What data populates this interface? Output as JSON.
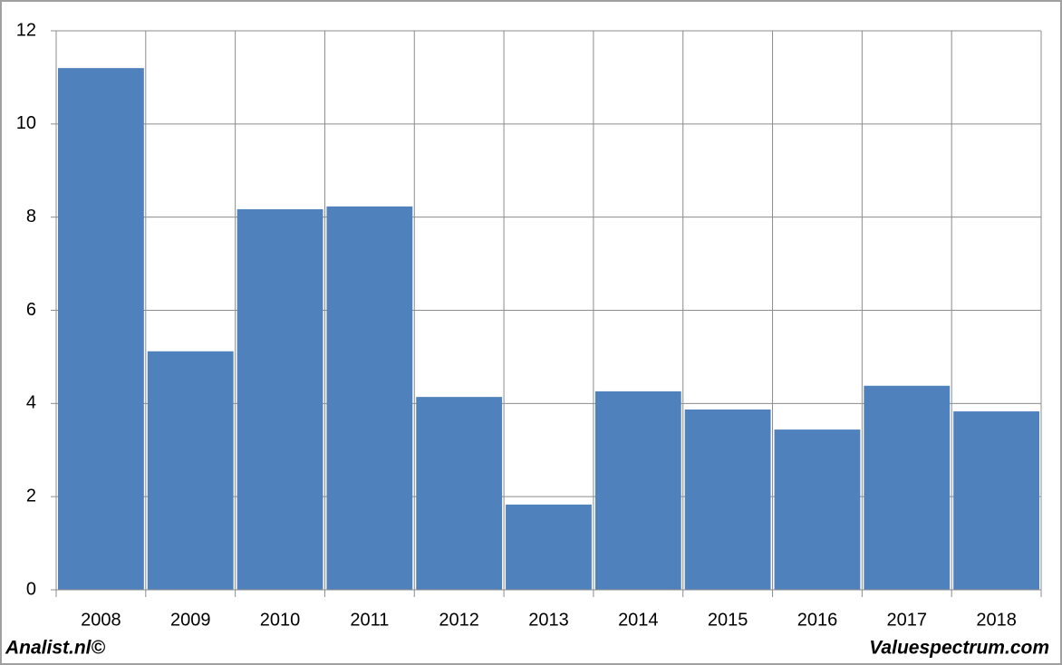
{
  "chart_data": {
    "type": "bar",
    "categories": [
      "2008",
      "2009",
      "2010",
      "2011",
      "2012",
      "2013",
      "2014",
      "2015",
      "2016",
      "2017",
      "2018"
    ],
    "values": [
      11.2,
      5.12,
      8.17,
      8.23,
      4.14,
      1.83,
      4.26,
      3.87,
      3.44,
      4.38,
      3.83
    ],
    "color": "#4f81bd",
    "ylim": [
      0,
      12
    ],
    "yticks": [
      0,
      2,
      4,
      6,
      8,
      10,
      12
    ],
    "grid": true,
    "annotations": [
      "Analist.nl©",
      "Valuespectrum.com"
    ]
  }
}
